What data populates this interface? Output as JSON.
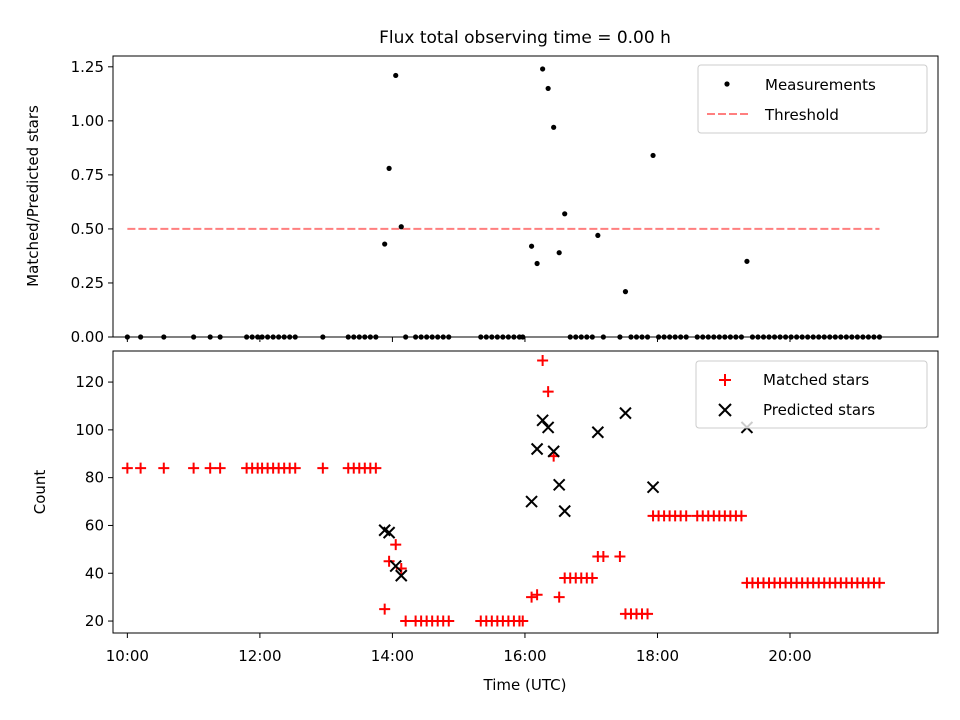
{
  "title": "Flux total observing time = 0.00 h",
  "colors": {
    "matched": "#ff0000",
    "predicted": "#000000",
    "measurements": "#000000",
    "threshold": "#ff7f7f"
  },
  "chart_data": [
    {
      "type": "scatter",
      "ylabel": "Matched/Predicted stars",
      "xlabel": "",
      "xlim": [
        "09:47",
        "22:14"
      ],
      "ylim": [
        0,
        1.3
      ],
      "y_ticks": [
        0.0,
        0.25,
        0.5,
        0.75,
        1.0,
        1.25
      ],
      "y_tick_labels": [
        "0.00",
        "0.25",
        "0.50",
        "0.75",
        "1.00",
        "1.25"
      ],
      "legend_position": "top-right",
      "series": [
        {
          "name": "Measurements",
          "marker": "dot",
          "points": [
            [
              "10:00",
              0
            ],
            [
              "10:12",
              0
            ],
            [
              "10:33",
              0
            ],
            [
              "11:00",
              0
            ],
            [
              "11:15",
              0
            ],
            [
              "11:24",
              0
            ],
            [
              "11:48",
              0
            ],
            [
              "11:53",
              0
            ],
            [
              "11:58",
              0
            ],
            [
              "12:02",
              0
            ],
            [
              "12:07",
              0
            ],
            [
              "12:12",
              0
            ],
            [
              "12:17",
              0
            ],
            [
              "12:22",
              0
            ],
            [
              "12:27",
              0
            ],
            [
              "12:32",
              0
            ],
            [
              "12:57",
              0
            ],
            [
              "13:20",
              0
            ],
            [
              "13:25",
              0
            ],
            [
              "13:30",
              0
            ],
            [
              "13:35",
              0
            ],
            [
              "13:40",
              0
            ],
            [
              "13:45",
              0
            ],
            [
              "13:53",
              0.43
            ],
            [
              "13:57",
              0.78
            ],
            [
              "14:03",
              1.21
            ],
            [
              "14:08",
              0.51
            ],
            [
              "14:12",
              0
            ],
            [
              "14:21",
              0
            ],
            [
              "14:26",
              0
            ],
            [
              "14:31",
              0
            ],
            [
              "14:36",
              0
            ],
            [
              "14:41",
              0
            ],
            [
              "14:46",
              0
            ],
            [
              "14:51",
              0
            ],
            [
              "15:20",
              0
            ],
            [
              "15:25",
              0
            ],
            [
              "15:30",
              0
            ],
            [
              "15:35",
              0
            ],
            [
              "15:40",
              0
            ],
            [
              "15:45",
              0
            ],
            [
              "15:50",
              0
            ],
            [
              "15:55",
              0
            ],
            [
              "15:58",
              0
            ],
            [
              "16:06",
              0.42
            ],
            [
              "16:11",
              0.34
            ],
            [
              "16:16",
              1.24
            ],
            [
              "16:21",
              1.15
            ],
            [
              "16:26",
              0.97
            ],
            [
              "16:31",
              0.39
            ],
            [
              "16:36",
              0.57
            ],
            [
              "16:41",
              0
            ],
            [
              "16:46",
              0
            ],
            [
              "16:51",
              0
            ],
            [
              "16:56",
              0
            ],
            [
              "17:01",
              0
            ],
            [
              "17:06",
              0.47
            ],
            [
              "17:11",
              0
            ],
            [
              "17:26",
              0
            ],
            [
              "17:31",
              0.21
            ],
            [
              "17:36",
              0
            ],
            [
              "17:41",
              0
            ],
            [
              "17:46",
              0
            ],
            [
              "17:51",
              0
            ],
            [
              "17:56",
              0.84
            ],
            [
              "18:01",
              0
            ],
            [
              "18:06",
              0
            ],
            [
              "18:11",
              0
            ],
            [
              "18:16",
              0
            ],
            [
              "18:21",
              0
            ],
            [
              "18:26",
              0
            ],
            [
              "18:36",
              0
            ],
            [
              "18:41",
              0
            ],
            [
              "18:46",
              0
            ],
            [
              "18:51",
              0
            ],
            [
              "18:56",
              0
            ],
            [
              "19:01",
              0
            ],
            [
              "19:06",
              0
            ],
            [
              "19:11",
              0
            ],
            [
              "19:16",
              0
            ],
            [
              "19:21",
              0.35
            ],
            [
              "19:26",
              0
            ],
            [
              "19:31",
              0
            ],
            [
              "19:36",
              0
            ],
            [
              "19:41",
              0
            ],
            [
              "19:46",
              0
            ],
            [
              "19:51",
              0
            ],
            [
              "19:56",
              0
            ],
            [
              "20:01",
              0
            ],
            [
              "20:06",
              0
            ],
            [
              "20:11",
              0
            ],
            [
              "20:16",
              0
            ],
            [
              "20:21",
              0
            ],
            [
              "20:26",
              0
            ],
            [
              "20:31",
              0
            ],
            [
              "20:36",
              0
            ],
            [
              "20:41",
              0
            ],
            [
              "20:46",
              0
            ],
            [
              "20:51",
              0
            ],
            [
              "20:56",
              0
            ],
            [
              "21:01",
              0
            ],
            [
              "21:06",
              0
            ],
            [
              "21:11",
              0
            ],
            [
              "21:16",
              0
            ],
            [
              "21:21",
              0
            ]
          ]
        },
        {
          "name": "Threshold",
          "line": "dashed",
          "points": [
            [
              "10:00",
              0.5
            ],
            [
              "21:21",
              0.5
            ]
          ]
        }
      ]
    },
    {
      "type": "scatter",
      "ylabel": "Count",
      "xlabel": "Time (UTC)",
      "xlim": [
        "09:47",
        "22:14"
      ],
      "ylim": [
        15,
        133
      ],
      "y_ticks": [
        20,
        40,
        60,
        80,
        100,
        120
      ],
      "y_tick_labels": [
        "20",
        "40",
        "60",
        "80",
        "100",
        "120"
      ],
      "x_ticks": [
        "10:00",
        "12:00",
        "14:00",
        "16:00",
        "18:00",
        "20:00"
      ],
      "legend_position": "top-right",
      "series": [
        {
          "name": "Matched stars",
          "marker": "plus",
          "points": [
            [
              "10:00",
              84
            ],
            [
              "10:12",
              84
            ],
            [
              "10:33",
              84
            ],
            [
              "11:00",
              84
            ],
            [
              "11:15",
              84
            ],
            [
              "11:24",
              84
            ],
            [
              "11:48",
              84
            ],
            [
              "11:53",
              84
            ],
            [
              "11:58",
              84
            ],
            [
              "12:02",
              84
            ],
            [
              "12:07",
              84
            ],
            [
              "12:12",
              84
            ],
            [
              "12:17",
              84
            ],
            [
              "12:22",
              84
            ],
            [
              "12:27",
              84
            ],
            [
              "12:32",
              84
            ],
            [
              "12:57",
              84
            ],
            [
              "13:20",
              84
            ],
            [
              "13:25",
              84
            ],
            [
              "13:30",
              84
            ],
            [
              "13:35",
              84
            ],
            [
              "13:40",
              84
            ],
            [
              "13:45",
              84
            ],
            [
              "13:53",
              25
            ],
            [
              "13:57",
              45
            ],
            [
              "14:03",
              52
            ],
            [
              "14:08",
              42
            ],
            [
              "14:12",
              20
            ],
            [
              "14:21",
              20
            ],
            [
              "14:26",
              20
            ],
            [
              "14:31",
              20
            ],
            [
              "14:36",
              20
            ],
            [
              "14:41",
              20
            ],
            [
              "14:46",
              20
            ],
            [
              "14:51",
              20
            ],
            [
              "15:20",
              20
            ],
            [
              "15:25",
              20
            ],
            [
              "15:30",
              20
            ],
            [
              "15:35",
              20
            ],
            [
              "15:40",
              20
            ],
            [
              "15:45",
              20
            ],
            [
              "15:50",
              20
            ],
            [
              "15:55",
              20
            ],
            [
              "15:58",
              20
            ],
            [
              "16:06",
              30
            ],
            [
              "16:11",
              31
            ],
            [
              "16:16",
              129
            ],
            [
              "16:21",
              116
            ],
            [
              "16:26",
              89
            ],
            [
              "16:31",
              30
            ],
            [
              "16:36",
              38
            ],
            [
              "16:41",
              38
            ],
            [
              "16:46",
              38
            ],
            [
              "16:51",
              38
            ],
            [
              "16:56",
              38
            ],
            [
              "17:01",
              38
            ],
            [
              "17:06",
              47
            ],
            [
              "17:11",
              47
            ],
            [
              "17:26",
              47
            ],
            [
              "17:31",
              23
            ],
            [
              "17:36",
              23
            ],
            [
              "17:41",
              23
            ],
            [
              "17:46",
              23
            ],
            [
              "17:51",
              23
            ],
            [
              "17:56",
              64
            ],
            [
              "18:01",
              64
            ],
            [
              "18:06",
              64
            ],
            [
              "18:11",
              64
            ],
            [
              "18:16",
              64
            ],
            [
              "18:21",
              64
            ],
            [
              "18:26",
              64
            ],
            [
              "18:36",
              64
            ],
            [
              "18:41",
              64
            ],
            [
              "18:46",
              64
            ],
            [
              "18:51",
              64
            ],
            [
              "18:56",
              64
            ],
            [
              "19:01",
              64
            ],
            [
              "19:06",
              64
            ],
            [
              "19:11",
              64
            ],
            [
              "19:16",
              64
            ],
            [
              "19:21",
              36
            ],
            [
              "19:26",
              36
            ],
            [
              "19:31",
              36
            ],
            [
              "19:36",
              36
            ],
            [
              "19:41",
              36
            ],
            [
              "19:46",
              36
            ],
            [
              "19:51",
              36
            ],
            [
              "19:56",
              36
            ],
            [
              "20:01",
              36
            ],
            [
              "20:06",
              36
            ],
            [
              "20:11",
              36
            ],
            [
              "20:16",
              36
            ],
            [
              "20:21",
              36
            ],
            [
              "20:26",
              36
            ],
            [
              "20:31",
              36
            ],
            [
              "20:36",
              36
            ],
            [
              "20:41",
              36
            ],
            [
              "20:46",
              36
            ],
            [
              "20:51",
              36
            ],
            [
              "20:56",
              36
            ],
            [
              "21:01",
              36
            ],
            [
              "21:06",
              36
            ],
            [
              "21:11",
              36
            ],
            [
              "21:16",
              36
            ],
            [
              "21:21",
              36
            ]
          ]
        },
        {
          "name": "Predicted stars",
          "marker": "x",
          "points": [
            [
              "13:53",
              58
            ],
            [
              "13:57",
              57
            ],
            [
              "14:03",
              43
            ],
            [
              "14:08",
              39
            ],
            [
              "16:06",
              70
            ],
            [
              "16:11",
              92
            ],
            [
              "16:16",
              104
            ],
            [
              "16:21",
              101
            ],
            [
              "16:26",
              91
            ],
            [
              "16:31",
              77
            ],
            [
              "16:36",
              66
            ],
            [
              "17:06",
              99
            ],
            [
              "17:31",
              107
            ],
            [
              "17:56",
              76
            ],
            [
              "19:21",
              101
            ]
          ]
        }
      ]
    }
  ]
}
